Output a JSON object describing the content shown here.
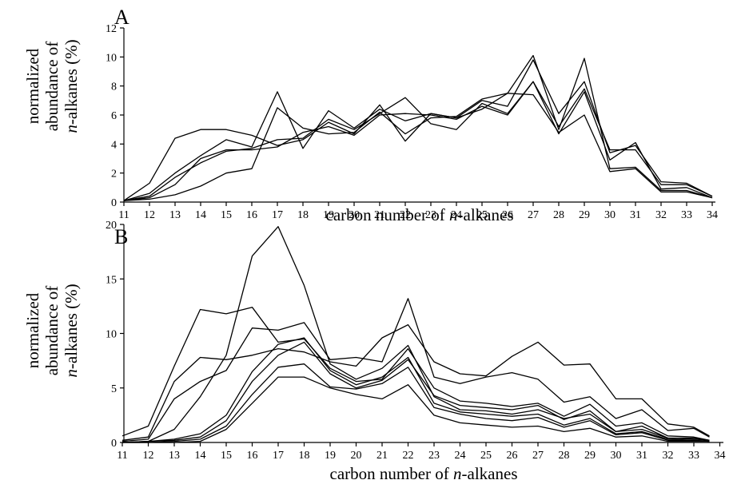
{
  "chart_data": [
    {
      "panel": "A",
      "type": "line",
      "ylabel": [
        "normalized",
        "abundance of",
        "n-alkanes (%)"
      ],
      "xlabel": "carbon number of n-alkanes",
      "x": [
        11,
        12,
        13,
        14,
        15,
        16,
        17,
        18,
        19,
        20,
        21,
        22,
        23,
        24,
        25,
        26,
        27,
        28,
        29,
        30,
        31,
        32,
        33,
        34
      ],
      "ylim": [
        0,
        12
      ],
      "yticks": [
        0,
        2,
        4,
        6,
        8,
        10,
        12
      ],
      "xticks": [
        11,
        12,
        13,
        14,
        15,
        16,
        17,
        18,
        19,
        20,
        21,
        22,
        23,
        24,
        25,
        26,
        27,
        28,
        29,
        30,
        31,
        32,
        33,
        34
      ],
      "grid": false,
      "series": [
        {
          "values": [
            0.1,
            1.3,
            4.4,
            5.0,
            5.0,
            4.6,
            3.9,
            4.3,
            5.5,
            4.7,
            6.7,
            4.2,
            6.1,
            5.8,
            6.4,
            7.5,
            10.1,
            5.0,
            9.9,
            2.3,
            2.4,
            0.8,
            0.8,
            0.3
          ]
        },
        {
          "values": [
            0.1,
            0.6,
            2.0,
            3.2,
            4.3,
            3.8,
            7.6,
            3.7,
            6.3,
            5.1,
            6.4,
            5.6,
            6.1,
            5.8,
            7.0,
            6.6,
            9.8,
            6.1,
            8.3,
            3.4,
            3.9,
            1.4,
            1.3,
            0.4
          ]
        },
        {
          "values": [
            0.1,
            0.4,
            1.7,
            2.7,
            3.5,
            3.7,
            4.3,
            4.4,
            5.7,
            5.0,
            6.1,
            7.2,
            5.4,
            5.0,
            6.8,
            6.1,
            8.3,
            4.7,
            7.6,
            2.9,
            4.1,
            0.9,
            1.0,
            0.3
          ]
        },
        {
          "values": [
            0.1,
            0.2,
            0.5,
            1.1,
            2.0,
            2.3,
            6.5,
            5.1,
            4.7,
            4.8,
            6.2,
            4.7,
            5.8,
            5.9,
            7.1,
            7.5,
            7.4,
            4.8,
            6.0,
            2.1,
            2.3,
            0.7,
            0.7,
            0.3
          ]
        },
        {
          "values": [
            0.1,
            0.3,
            1.2,
            3.0,
            3.6,
            3.6,
            3.8,
            4.8,
            5.2,
            4.6,
            6.0,
            6.1,
            6.0,
            5.7,
            6.6,
            6.0,
            8.3,
            5.2,
            7.8,
            3.6,
            3.6,
            1.2,
            1.2,
            0.4
          ]
        }
      ]
    },
    {
      "panel": "B",
      "type": "line",
      "ylabel": [
        "normalized",
        "abundance of",
        "n-alkanes (%)"
      ],
      "xlabel": "carbon number of n-alkanes",
      "x": [
        11,
        12,
        13,
        14,
        15,
        16,
        17,
        18,
        19,
        20,
        21,
        22,
        23,
        24,
        25,
        26,
        27,
        28,
        29,
        30,
        31,
        32,
        33,
        33.6
      ],
      "ylim": [
        0,
        20
      ],
      "yticks": [
        0,
        5,
        10,
        15,
        20
      ],
      "xticks": [
        11,
        12,
        13,
        14,
        15,
        16,
        17,
        18,
        19,
        20,
        21,
        22,
        23,
        24,
        25,
        26,
        27,
        28,
        29,
        30,
        31,
        32,
        33,
        34
      ],
      "grid": false,
      "series": [
        {
          "values": [
            0.6,
            1.5,
            7.0,
            12.2,
            11.8,
            12.4,
            9.2,
            9.5,
            6.8,
            5.6,
            5.8,
            8.6,
            5.0,
            3.8,
            3.6,
            3.3,
            3.6,
            2.4,
            3.5,
            1.5,
            1.8,
            0.6,
            0.5,
            0.2
          ]
        },
        {
          "values": [
            0.2,
            0.5,
            5.6,
            7.8,
            7.6,
            8.0,
            8.6,
            8.3,
            7.4,
            7.0,
            9.6,
            10.8,
            7.4,
            6.3,
            6.1,
            7.9,
            9.2,
            7.1,
            7.2,
            4.0,
            4.0,
            1.7,
            1.4,
            0.6
          ]
        },
        {
          "values": [
            0.1,
            0.3,
            4.0,
            5.6,
            6.6,
            10.5,
            10.3,
            11.0,
            7.6,
            7.8,
            7.4,
            13.2,
            6.0,
            5.4,
            6.0,
            6.4,
            5.8,
            3.7,
            4.2,
            2.2,
            3.0,
            1.1,
            1.3,
            0.5
          ]
        },
        {
          "values": [
            0.0,
            0.1,
            1.2,
            4.2,
            8.0,
            17.1,
            19.8,
            14.4,
            7.2,
            5.8,
            6.8,
            8.9,
            4.2,
            3.0,
            2.9,
            2.6,
            3.0,
            2.2,
            2.6,
            1.0,
            1.5,
            0.4,
            0.4,
            0.2
          ]
        },
        {
          "values": [
            0.0,
            0.1,
            0.2,
            0.5,
            2.0,
            5.6,
            8.0,
            9.2,
            6.3,
            5.0,
            5.7,
            7.6,
            4.3,
            3.4,
            3.2,
            3.0,
            3.4,
            2.1,
            2.9,
            1.0,
            1.2,
            0.4,
            0.3,
            0.2
          ]
        },
        {
          "values": [
            0.0,
            0.0,
            0.1,
            0.3,
            1.5,
            4.4,
            6.9,
            7.2,
            5.1,
            4.9,
            5.4,
            6.9,
            3.2,
            2.6,
            2.2,
            2.0,
            2.3,
            1.4,
            2.0,
            0.7,
            0.9,
            0.2,
            0.2,
            0.1
          ]
        },
        {
          "values": [
            0.0,
            0.0,
            0.0,
            0.1,
            1.2,
            3.6,
            6.0,
            6.0,
            5.0,
            4.4,
            4.0,
            5.3,
            2.5,
            1.8,
            1.6,
            1.4,
            1.5,
            1.0,
            1.3,
            0.5,
            0.6,
            0.1,
            0.1,
            0.1
          ]
        },
        {
          "values": [
            0.0,
            0.1,
            0.3,
            0.8,
            2.5,
            6.5,
            9.0,
            9.6,
            6.6,
            5.3,
            6.0,
            7.8,
            3.6,
            2.8,
            2.6,
            2.4,
            2.6,
            1.6,
            2.2,
            0.8,
            1.0,
            0.3,
            0.2,
            0.1
          ]
        }
      ]
    }
  ]
}
